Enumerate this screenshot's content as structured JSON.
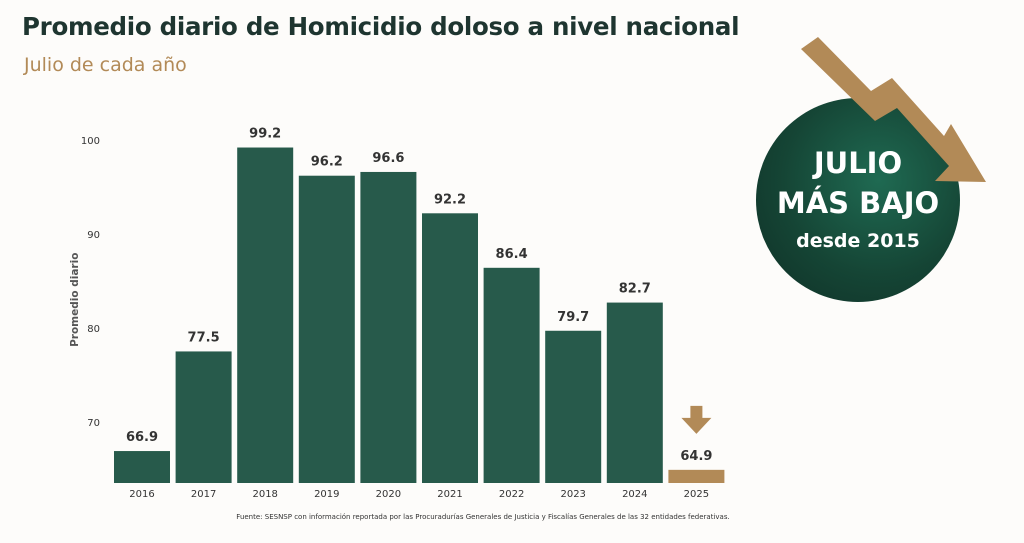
{
  "title": "Promedio diario de Homicidio doloso a nivel nacional",
  "subtitle": "Julio de cada año",
  "badge": {
    "line1": "JULIO",
    "line2": "MÁS BAJO",
    "line3": "desde 2015"
  },
  "source": "Fuente: SESNSP con información reportada por las Procuradurías Generales de Justicia y Fiscalías Generales de las 32 entidades federativas.",
  "colors": {
    "bar": "#275a4b",
    "highlight": "#b28a57",
    "title": "#1e3530",
    "subtitle": "#b28a57"
  },
  "chart_data": {
    "type": "bar",
    "title": "Promedio diario de Homicidio doloso a nivel nacional",
    "subtitle": "Julio de cada año",
    "xlabel": "",
    "ylabel": "Promedio diario",
    "categories": [
      "2016",
      "2017",
      "2018",
      "2019",
      "2020",
      "2021",
      "2022",
      "2023",
      "2024",
      "2025"
    ],
    "values": [
      66.9,
      77.5,
      99.2,
      96.2,
      96.6,
      92.2,
      86.4,
      79.7,
      82.7,
      64.9
    ],
    "yticks": [
      70,
      80,
      90,
      100
    ],
    "ylim": [
      63.5,
      100
    ],
    "highlight_category": "2025",
    "grid": false,
    "legend": "none"
  }
}
